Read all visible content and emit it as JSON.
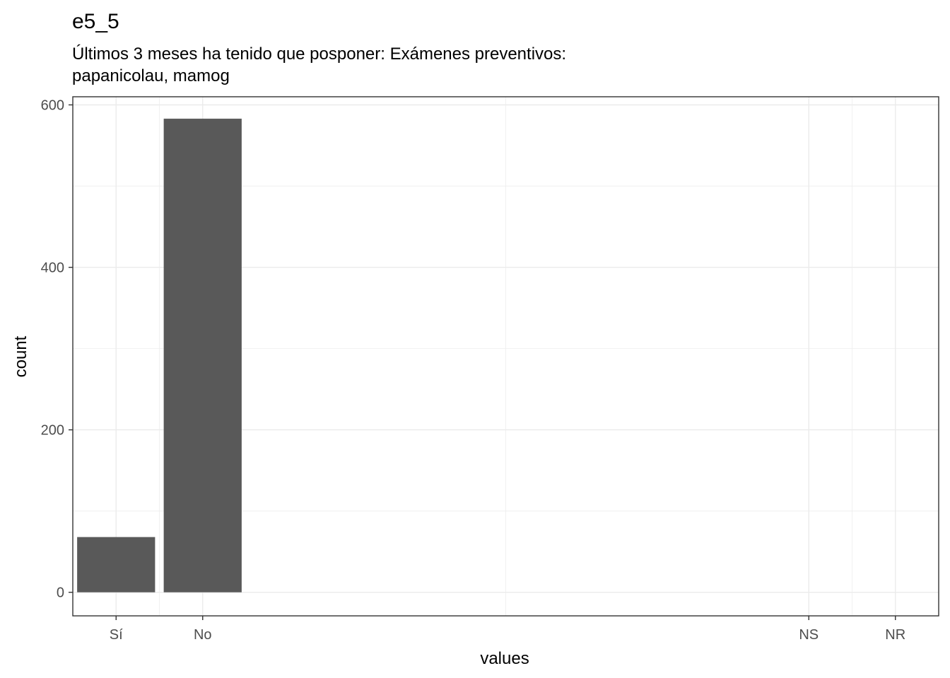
{
  "chart_data": {
    "type": "bar",
    "title": "e5_5",
    "subtitle_lines": [
      "Últimos 3 meses ha tenido que posponer: Exámenes preventivos:",
      "papanicolau, mamog"
    ],
    "xlabel": "values",
    "ylabel": "count",
    "x_ticks": [
      {
        "label": "Sí",
        "x": 1
      },
      {
        "label": "No",
        "x": 2
      },
      {
        "label": "NS",
        "x": 9
      },
      {
        "label": "NR",
        "x": 10
      }
    ],
    "bars": [
      {
        "label": "Sí",
        "x": 1,
        "value": 68
      },
      {
        "label": "No",
        "x": 2,
        "value": 583
      }
    ],
    "xlim": [
      0.5,
      10.5
    ],
    "ylim": [
      -29,
      610
    ],
    "y_ticks": [
      0,
      200,
      400,
      600
    ],
    "bar_width": 0.9,
    "grid": true,
    "colors": {
      "bar": "#595959",
      "grid": "#ebebeb",
      "border": "#333333"
    }
  }
}
